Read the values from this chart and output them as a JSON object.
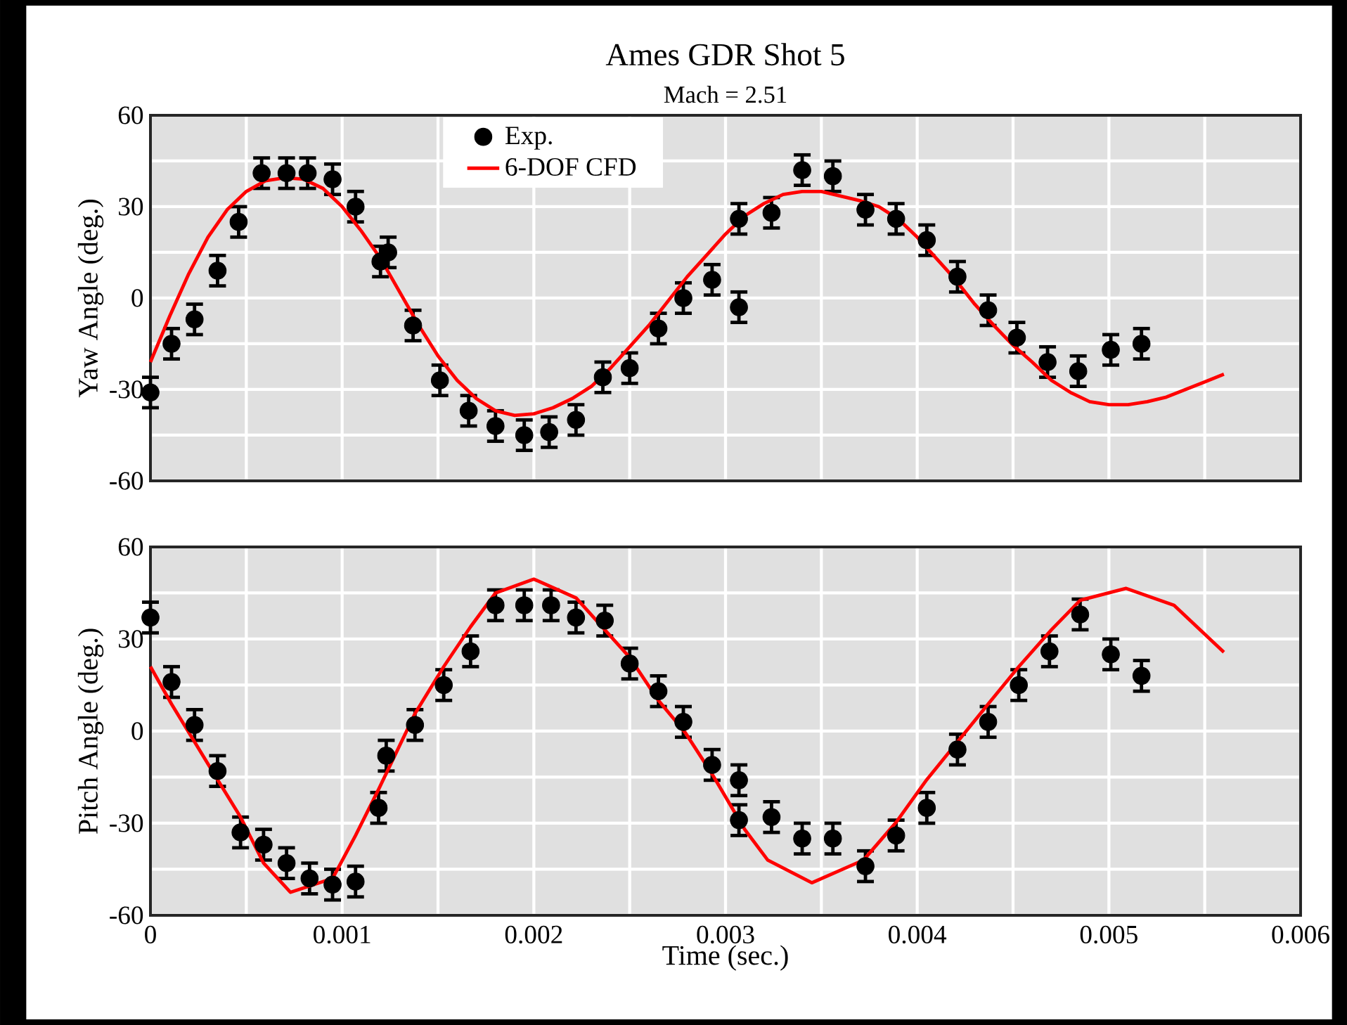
{
  "chart_data": [
    {
      "type": "scatter",
      "title": "Ames GDR Shot 5",
      "subtitle": "Mach = 2.51",
      "ylabel": "Yaw Angle (deg.)",
      "xlim": [
        0,
        0.006
      ],
      "ylim": [
        -60,
        60
      ],
      "xticks": [
        0,
        {
          "value": 0.0005,
          "label": null
        },
        0.001,
        {
          "value": 0.0015,
          "label": null
        },
        0.002,
        {
          "value": 0.0025,
          "label": null
        },
        0.003,
        {
          "value": 0.0035,
          "label": null
        },
        0.004,
        {
          "value": 0.0045,
          "label": null
        },
        0.005,
        {
          "value": 0.0055,
          "label": null
        },
        0.006
      ],
      "yticks": [
        -60,
        {
          "value": -45,
          "label": null
        },
        -30,
        {
          "value": -15,
          "label": null
        },
        0,
        {
          "value": 15,
          "label": null
        },
        30,
        {
          "value": 45,
          "label": null
        },
        60
      ],
      "grid": true,
      "legend": "top",
      "tick_labels": "y",
      "series": [
        {
          "name": "Exp.",
          "marker": "circle",
          "color": "#000000",
          "x": [
            0,
            0.00011,
            0.00023,
            0.00035,
            0.00046,
            0.00058,
            0.00071,
            0.00082,
            0.00095,
            0.00107,
            0.0012,
            0.00124,
            0.00137,
            0.00151,
            0.00166,
            0.0018,
            0.00195,
            0.00208,
            0.00222,
            0.00236,
            0.0025,
            0.00265,
            0.00278,
            0.00293,
            0.00307,
            0.00307,
            0.00324,
            0.0034,
            0.00356,
            0.00373,
            0.00389,
            0.00405,
            0.00421,
            0.00437,
            0.00452,
            0.00468,
            0.00484,
            0.00501,
            0.00517
          ],
          "values": [
            -31,
            -15,
            -7,
            9,
            25,
            41,
            41,
            41,
            39,
            30,
            12,
            15,
            -9,
            -27,
            -37,
            -42,
            -45,
            -44,
            -40,
            -26,
            -23,
            -10,
            0,
            6,
            -3,
            26,
            28,
            42,
            40,
            29,
            26,
            19,
            7,
            -4,
            -13,
            -21,
            -24,
            -17,
            -15
          ],
          "errors": [
            5,
            5,
            5,
            5,
            5,
            5,
            5,
            5,
            5,
            5,
            5,
            5,
            5,
            5,
            5,
            5,
            5,
            5,
            5,
            5,
            5,
            5,
            5,
            5,
            5,
            5,
            5,
            5,
            5,
            5,
            5,
            5,
            5,
            5,
            5,
            5,
            5,
            5,
            5
          ]
        },
        {
          "name": "6-DOF CFD",
          "type": "line",
          "marker": "none",
          "color": "#ff0000",
          "x": [
            0,
            0.0001,
            0.0002,
            0.0003,
            0.0004,
            0.0005,
            0.0006,
            0.0007,
            0.0008,
            0.0009,
            0.001,
            0.0011,
            0.0012,
            0.0013,
            0.0014,
            0.0015,
            0.0016,
            0.0017,
            0.0018,
            0.0019,
            0.002,
            0.0021,
            0.0022,
            0.0023,
            0.0024,
            0.0025,
            0.0026,
            0.0027,
            0.0028,
            0.0029,
            0.003,
            0.0031,
            0.0032,
            0.0033,
            0.0034,
            0.0035,
            0.0036,
            0.0037,
            0.0038,
            0.0039,
            0.004,
            0.0041,
            0.0042,
            0.0043,
            0.0044,
            0.0045,
            0.0046,
            0.0047,
            0.0048,
            0.0049,
            0.005,
            0.0051,
            0.0052,
            0.0053,
            0.0054,
            0.0055,
            0.0056
          ],
          "values": [
            -21,
            -6,
            8,
            20,
            29,
            35,
            38.5,
            39.5,
            39,
            36,
            30,
            22,
            13,
            2,
            -9,
            -19,
            -27,
            -33,
            -37,
            -38.5,
            -38,
            -36,
            -33,
            -29,
            -23,
            -16,
            -9,
            -1,
            7,
            14,
            21,
            27,
            31,
            34,
            35,
            35,
            33.5,
            32,
            30,
            26,
            20,
            13,
            6,
            -2,
            -9,
            -15.5,
            -21,
            -27,
            -31,
            -34,
            -35,
            -35,
            -34,
            -32.5,
            -30,
            -27.5,
            -25
          ]
        }
      ]
    },
    {
      "type": "scatter",
      "xlabel": "Time (sec.)",
      "ylabel": "Pitch Angle (deg.)",
      "xlim": [
        0,
        0.006
      ],
      "ylim": [
        -60,
        60
      ],
      "xticks": [
        0,
        {
          "value": 0.0005,
          "label": null
        },
        0.001,
        {
          "value": 0.0015,
          "label": null
        },
        0.002,
        {
          "value": 0.0025,
          "label": null
        },
        0.003,
        {
          "value": 0.0035,
          "label": null
        },
        0.004,
        {
          "value": 0.0045,
          "label": null
        },
        0.005,
        {
          "value": 0.0055,
          "label": null
        },
        0.006
      ],
      "yticks": [
        -60,
        {
          "value": -45,
          "label": null
        },
        -30,
        {
          "value": -15,
          "label": null
        },
        0,
        {
          "value": 15,
          "label": null
        },
        30,
        {
          "value": 45,
          "label": null
        },
        60
      ],
      "grid": true,
      "series": [
        {
          "marker": "circle",
          "color": "#000000",
          "x": [
            0,
            0.00011,
            0.00023,
            0.00035,
            0.00047,
            0.00059,
            0.00071,
            0.00083,
            0.00095,
            0.00107,
            0.00119,
            0.00123,
            0.00138,
            0.00153,
            0.00167,
            0.0018,
            0.00195,
            0.00209,
            0.00222,
            0.00237,
            0.0025,
            0.00265,
            0.00278,
            0.00293,
            0.00307,
            0.00307,
            0.00324,
            0.0034,
            0.00356,
            0.00373,
            0.00389,
            0.00405,
            0.00421,
            0.00437,
            0.00453,
            0.00469,
            0.00485,
            0.00501,
            0.00517
          ],
          "values": [
            37,
            16,
            2,
            -13,
            -33,
            -37,
            -43,
            -48,
            -50,
            -49,
            -25,
            -8,
            2,
            15,
            26,
            41,
            41,
            41,
            37,
            36,
            22,
            13,
            3,
            -11,
            -16,
            -29,
            -28,
            -35,
            -35,
            -44,
            -34,
            -25,
            -6,
            3,
            15,
            26,
            38,
            25,
            18
          ],
          "errors": [
            5,
            5,
            5,
            5,
            5,
            5,
            5,
            5,
            5,
            5,
            5,
            5,
            5,
            5,
            5,
            5,
            5,
            5,
            5,
            5,
            5,
            5,
            5,
            5,
            5,
            5,
            5,
            5,
            5,
            5,
            5,
            5,
            5,
            5,
            5,
            5,
            5,
            5,
            5
          ]
        },
        {
          "type": "line",
          "marker": "none",
          "color": "#ff0000",
          "x": [
            0,
            0.00011,
            0.00023,
            0.00035,
            0.00047,
            0.00059,
            0.00073,
            0.00095,
            0.00107,
            0.00119,
            0.00138,
            0.00153,
            0.00167,
            0.0018,
            0.002,
            0.00222,
            0.0025,
            0.00265,
            0.00279,
            0.00293,
            0.0031,
            0.00322,
            0.00345,
            0.00372,
            0.00389,
            0.00405,
            0.00421,
            0.00437,
            0.00453,
            0.0047,
            0.00485,
            0.00509,
            0.00534,
            0.0056
          ],
          "values": [
            21,
            8.8,
            -3.5,
            -15.8,
            -28,
            -43,
            -52.5,
            -48,
            -34,
            -19,
            5.7,
            21,
            34,
            45,
            49.5,
            43.4,
            24,
            10,
            -0.5,
            -14,
            -32,
            -42,
            -49.4,
            -42,
            -29.7,
            -15.8,
            -3.5,
            8.8,
            21,
            33,
            42.6,
            46.5,
            41,
            25.7
          ]
        }
      ]
    }
  ]
}
